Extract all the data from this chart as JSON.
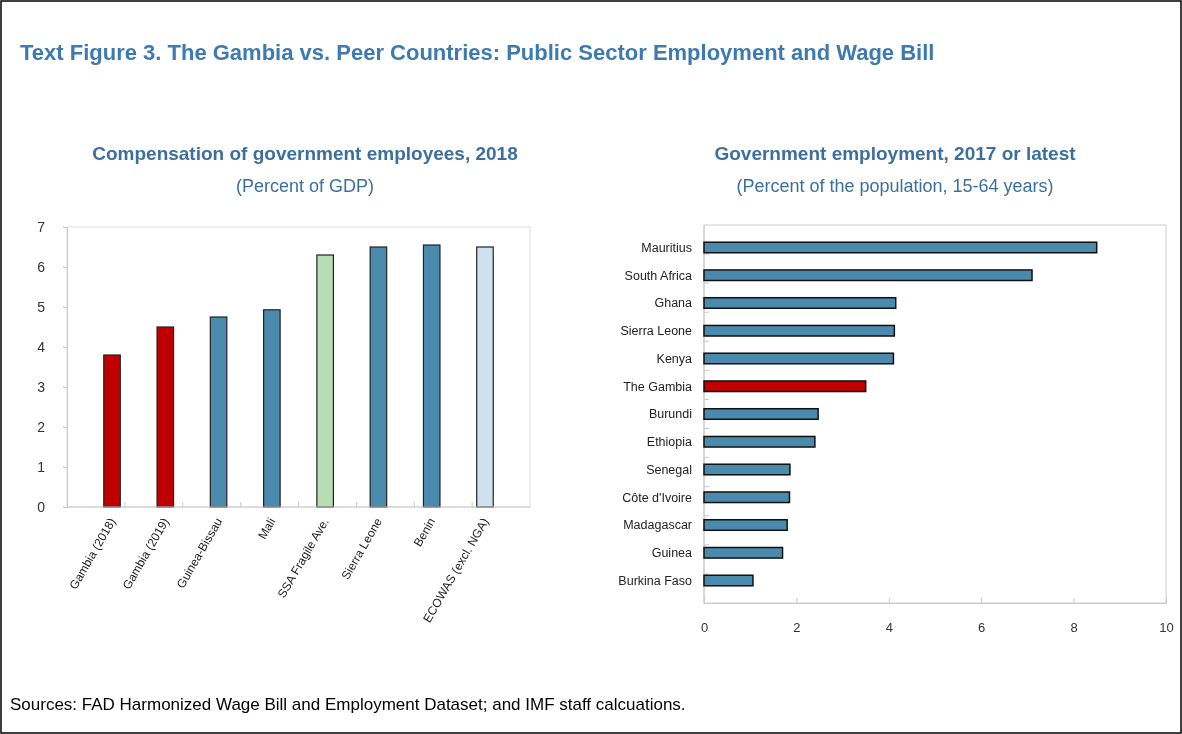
{
  "chart_data": [
    {
      "type": "bar",
      "title": "Compensation of government employees, 2018",
      "subtitle": "(Percent of GDP)",
      "categories": [
        "Gambia (2018)",
        "Gambia (2019)",
        "Guinea-Bissau",
        "Mali",
        "SSA Fragile Ave.",
        "Sierra Leone",
        "Benin",
        "ECOWAS (excl. NGA)"
      ],
      "values": [
        3.8,
        4.5,
        4.75,
        4.93,
        6.3,
        6.5,
        6.55,
        6.5
      ],
      "colors": [
        "#c00000",
        "#c00000",
        "#4a8aad",
        "#4a8aad",
        "#b7deb3",
        "#4a8aad",
        "#4a8aad",
        "#cfe0ee"
      ],
      "ylim": [
        0,
        7
      ],
      "yticks": [
        0,
        1,
        2,
        3,
        4,
        5,
        6,
        7
      ],
      "grid": false,
      "annotations": [
        "Text Figure 3. The Gambia vs. Peer Countries: Public Sector Employment and Wage Bill"
      ]
    },
    {
      "type": "bar",
      "orientation": "horizontal",
      "title": "Government employment, 2017 or latest",
      "subtitle": "(Percent of the population, 15-64 years)",
      "categories": [
        "Mauritius",
        "South Africa",
        "Ghana",
        "Sierra Leone",
        "Kenya",
        "The Gambia",
        "Burundi",
        "Ethiopia",
        "Senegal",
        "Côte d'Ivoire",
        "Madagascar",
        "Guinea",
        "Burkina Faso"
      ],
      "values": [
        8.5,
        7.1,
        4.15,
        4.12,
        4.1,
        3.5,
        2.47,
        2.4,
        1.86,
        1.85,
        1.8,
        1.7,
        1.06
      ],
      "colors": [
        "#4a8aad",
        "#4a8aad",
        "#4a8aad",
        "#4a8aad",
        "#4a8aad",
        "#c00000",
        "#4a8aad",
        "#4a8aad",
        "#4a8aad",
        "#4a8aad",
        "#4a8aad",
        "#4a8aad",
        "#4a8aad"
      ],
      "xlim": [
        0,
        10
      ],
      "xticks": [
        0,
        2,
        4,
        6,
        8,
        10
      ],
      "grid": false,
      "annotations": [
        "Sources: FAD Harmonized Wage Bill and Employment Dataset; and IMF staff calcuations."
      ]
    }
  ]
}
